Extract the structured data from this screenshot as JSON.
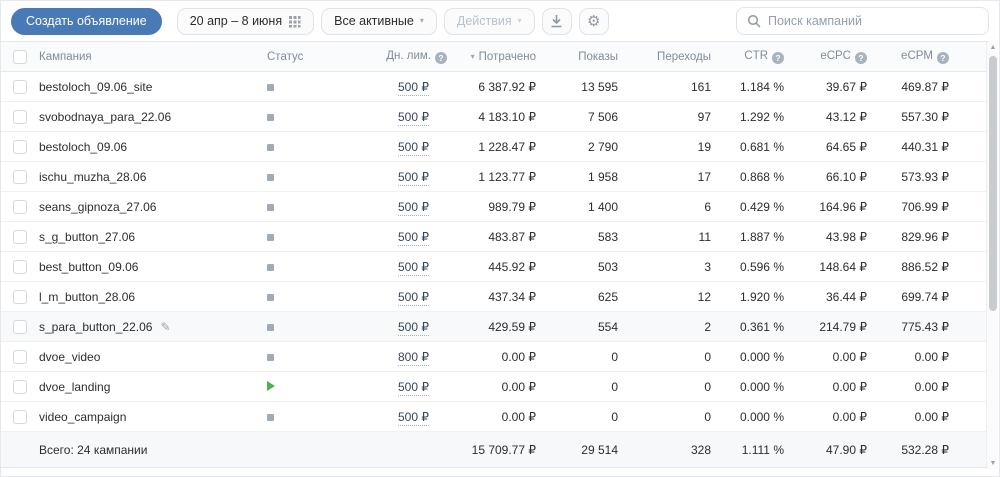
{
  "toolbar": {
    "create_label": "Создать объявление",
    "date_range_label": "20 апр – 8 июня",
    "filter_label": "Все активные",
    "actions_label": "Действия",
    "search_placeholder": "Поиск кампаний"
  },
  "table": {
    "headers": {
      "campaign": "Кампания",
      "status": "Статус",
      "daily_limit": "Дн. лим.",
      "spent": "Потрачено",
      "impressions": "Показы",
      "clicks": "Переходы",
      "ctr": "CTR",
      "ecpc": "eCPC",
      "ecpm": "eCPM"
    },
    "rows": [
      {
        "name": "bestoloch_09.06_site",
        "status": "paused",
        "daily_limit": "500 ₽",
        "spent": "6 387.92 ₽",
        "impressions": "13 595",
        "clicks": "161",
        "ctr": "1.184 %",
        "ecpc": "39.67 ₽",
        "ecpm": "469.87 ₽",
        "editable": false,
        "hovered": false
      },
      {
        "name": "svobodnaya_para_22.06",
        "status": "paused",
        "daily_limit": "500 ₽",
        "spent": "4 183.10 ₽",
        "impressions": "7 506",
        "clicks": "97",
        "ctr": "1.292 %",
        "ecpc": "43.12 ₽",
        "ecpm": "557.30 ₽",
        "editable": false,
        "hovered": false
      },
      {
        "name": "bestoloch_09.06",
        "status": "paused",
        "daily_limit": "500 ₽",
        "spent": "1 228.47 ₽",
        "impressions": "2 790",
        "clicks": "19",
        "ctr": "0.681 %",
        "ecpc": "64.65 ₽",
        "ecpm": "440.31 ₽",
        "editable": false,
        "hovered": false
      },
      {
        "name": "ischu_muzha_28.06",
        "status": "paused",
        "daily_limit": "500 ₽",
        "spent": "1 123.77 ₽",
        "impressions": "1 958",
        "clicks": "17",
        "ctr": "0.868 %",
        "ecpc": "66.10 ₽",
        "ecpm": "573.93 ₽",
        "editable": false,
        "hovered": false
      },
      {
        "name": "seans_gipnoza_27.06",
        "status": "paused",
        "daily_limit": "500 ₽",
        "spent": "989.79 ₽",
        "impressions": "1 400",
        "clicks": "6",
        "ctr": "0.429 %",
        "ecpc": "164.96 ₽",
        "ecpm": "706.99 ₽",
        "editable": false,
        "hovered": false
      },
      {
        "name": "s_g_button_27.06",
        "status": "paused",
        "daily_limit": "500 ₽",
        "spent": "483.87 ₽",
        "impressions": "583",
        "clicks": "11",
        "ctr": "1.887 %",
        "ecpc": "43.98 ₽",
        "ecpm": "829.96 ₽",
        "editable": false,
        "hovered": false
      },
      {
        "name": "best_button_09.06",
        "status": "paused",
        "daily_limit": "500 ₽",
        "spent": "445.92 ₽",
        "impressions": "503",
        "clicks": "3",
        "ctr": "0.596 %",
        "ecpc": "148.64 ₽",
        "ecpm": "886.52 ₽",
        "editable": false,
        "hovered": false
      },
      {
        "name": "l_m_button_28.06",
        "status": "paused",
        "daily_limit": "500 ₽",
        "spent": "437.34 ₽",
        "impressions": "625",
        "clicks": "12",
        "ctr": "1.920 %",
        "ecpc": "36.44 ₽",
        "ecpm": "699.74 ₽",
        "editable": false,
        "hovered": false
      },
      {
        "name": "s_para_button_22.06",
        "status": "paused",
        "daily_limit": "500 ₽",
        "spent": "429.59 ₽",
        "impressions": "554",
        "clicks": "2",
        "ctr": "0.361 %",
        "ecpc": "214.79 ₽",
        "ecpm": "775.43 ₽",
        "editable": true,
        "hovered": true
      },
      {
        "name": "dvoe_video",
        "status": "paused",
        "daily_limit": "800 ₽",
        "spent": "0.00 ₽",
        "impressions": "0",
        "clicks": "0",
        "ctr": "0.000 %",
        "ecpc": "0.00 ₽",
        "ecpm": "0.00 ₽",
        "editable": false,
        "hovered": false
      },
      {
        "name": "dvoe_landing",
        "status": "active",
        "daily_limit": "500 ₽",
        "spent": "0.00 ₽",
        "impressions": "0",
        "clicks": "0",
        "ctr": "0.000 %",
        "ecpc": "0.00 ₽",
        "ecpm": "0.00 ₽",
        "editable": false,
        "hovered": false
      },
      {
        "name": "video_campaign",
        "status": "paused",
        "daily_limit": "500 ₽",
        "spent": "0.00 ₽",
        "impressions": "0",
        "clicks": "0",
        "ctr": "0.000 %",
        "ecpc": "0.00 ₽",
        "ecpm": "0.00 ₽",
        "editable": false,
        "hovered": false
      }
    ],
    "footer": {
      "total_label": "Всего: 24 кампании",
      "spent": "15 709.77 ₽",
      "impressions": "29 514",
      "clicks": "328",
      "ctr": "1.111 %",
      "ecpc": "47.90 ₽",
      "ecpm": "532.28 ₽"
    }
  },
  "icons": {
    "gear": "⚙",
    "pencil": "✎",
    "caret_down": "▾",
    "sort_desc": "▾",
    "help": "?",
    "scroll_up": "▲",
    "scroll_down": "▼"
  },
  "colors": {
    "accent": "#4a7ab5",
    "active_green": "#4bb34b",
    "paused_gray": "#a2abb5"
  }
}
